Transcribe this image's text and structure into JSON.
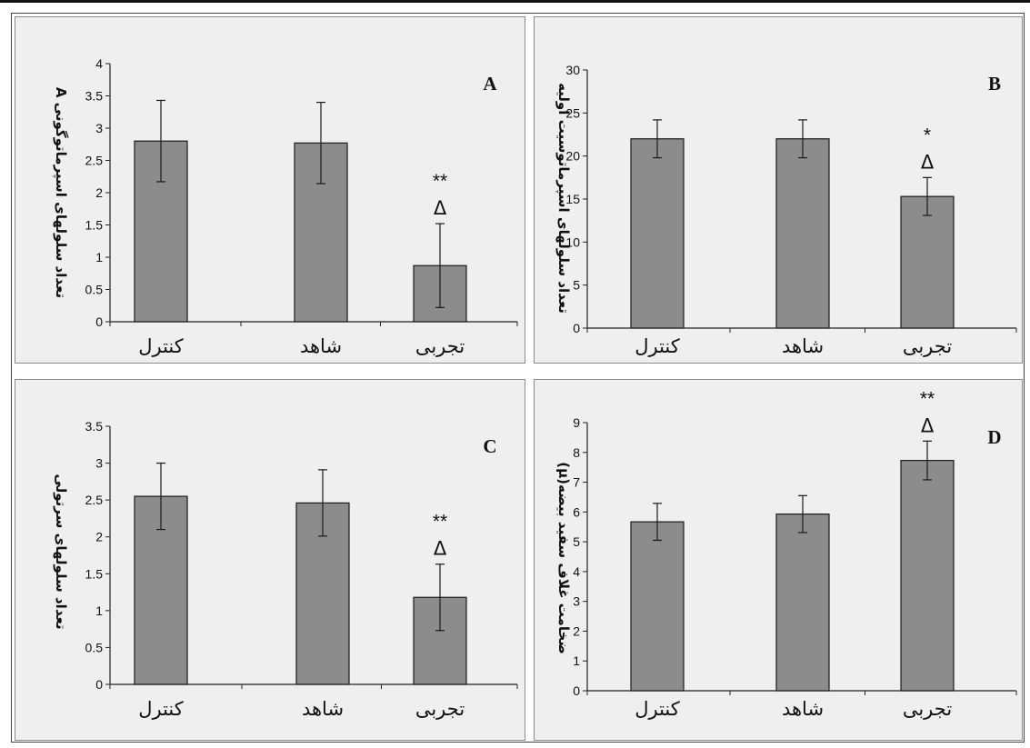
{
  "chart_data": [
    {
      "type": "bar",
      "panel": "A",
      "ylabel": "تعداد سلولهای اسپرماتوگونی A",
      "categories": [
        "کنترل",
        "شاهد",
        "تجربی"
      ],
      "values": [
        2.8,
        2.77,
        0.87
      ],
      "errors": [
        0.63,
        0.63,
        0.65
      ],
      "annotations": [
        {
          "category": "تجربی",
          "lines": [
            "**",
            "Δ"
          ]
        }
      ],
      "ylim": [
        0,
        4
      ],
      "yticks": [
        0,
        0.5,
        1,
        1.5,
        2,
        2.5,
        3,
        3.5,
        4
      ],
      "ytick_labels": [
        "0",
        "0.5",
        "1",
        "1.5",
        "2",
        "2.5",
        "3",
        "3.5",
        "4"
      ],
      "bar_color": "#8c8c8c",
      "grid": false
    },
    {
      "type": "bar",
      "panel": "B",
      "ylabel": "تعداد سلولهای اسپرماتوسیت اولیه",
      "categories": [
        "کنترل",
        "شاهد",
        "تجربی"
      ],
      "values": [
        22,
        22,
        15.3
      ],
      "errors": [
        2.2,
        2.2,
        2.2
      ],
      "annotations": [
        {
          "category": "تجربی",
          "lines": [
            "*",
            "Δ"
          ]
        }
      ],
      "ylim": [
        0,
        30
      ],
      "yticks": [
        0,
        5,
        10,
        15,
        20,
        25,
        30
      ],
      "ytick_labels": [
        "0",
        "5",
        "10",
        "15",
        "20",
        "25",
        "30"
      ],
      "bar_color": "#8c8c8c",
      "grid": false
    },
    {
      "type": "bar",
      "panel": "C",
      "ylabel": "تعداد سلولهای سرتولی",
      "categories": [
        "کنترل",
        "شاهد",
        "تجربی"
      ],
      "values": [
        2.55,
        2.46,
        1.18
      ],
      "errors": [
        0.45,
        0.45,
        0.45
      ],
      "annotations": [
        {
          "category": "تجربی",
          "lines": [
            "**",
            "Δ"
          ]
        }
      ],
      "ylim": [
        0,
        3.5
      ],
      "yticks": [
        0,
        0.5,
        1,
        1.5,
        2,
        2.5,
        3,
        3.5
      ],
      "ytick_labels": [
        "0",
        "0.5",
        "1",
        "1.5",
        "2",
        "2.5",
        "3",
        "3.5"
      ],
      "bar_color": "#8c8c8c",
      "grid": false
    },
    {
      "type": "bar",
      "panel": "D",
      "ylabel": "ضخامت غلاف سفید بیضه(μ)",
      "categories": [
        "کنترل",
        "شاهد",
        "تجربی"
      ],
      "values": [
        5.67,
        5.93,
        7.73
      ],
      "errors": [
        0.62,
        0.62,
        0.65
      ],
      "annotations": [
        {
          "category": "تجربی",
          "lines": [
            "**",
            "Δ"
          ]
        }
      ],
      "ylim": [
        0,
        9
      ],
      "yticks": [
        0,
        1,
        2,
        3,
        4,
        5,
        6,
        7,
        8,
        9
      ],
      "ytick_labels": [
        "0",
        "1",
        "2",
        "3",
        "4",
        "5",
        "6",
        "7",
        "8",
        "9"
      ],
      "bar_color": "#8c8c8c",
      "grid": false
    }
  ]
}
